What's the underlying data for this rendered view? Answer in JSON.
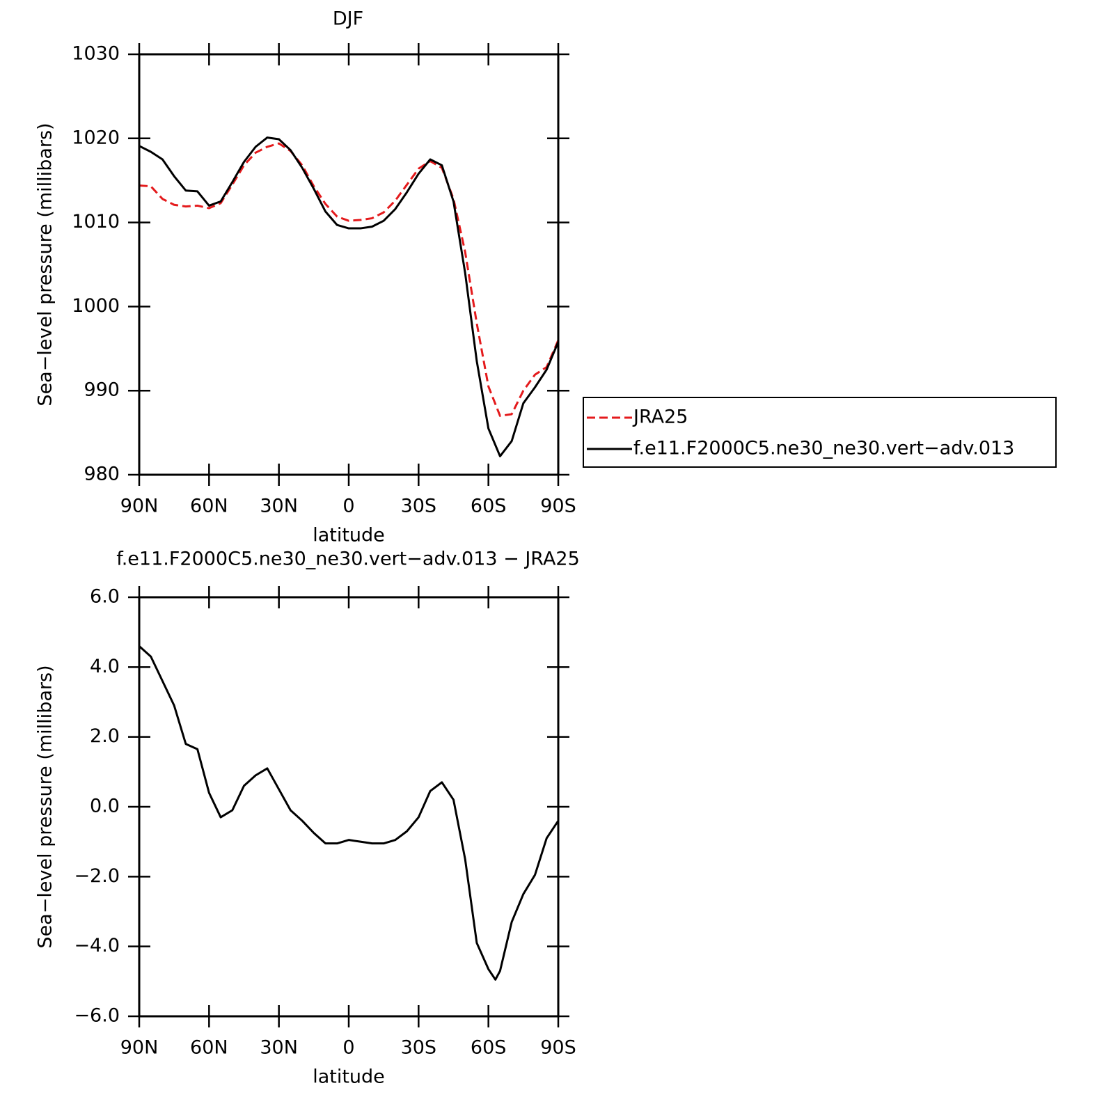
{
  "chart_data": [
    {
      "type": "line",
      "title": "DJF",
      "xlabel": "latitude",
      "ylabel": "Sea−level pressure (millibars)",
      "x": [
        90,
        85,
        80,
        75,
        70,
        65,
        60,
        55,
        50,
        45,
        40,
        35,
        30,
        25,
        20,
        15,
        10,
        5,
        0,
        -5,
        -10,
        -15,
        -20,
        -25,
        -30,
        -35,
        -40,
        -45,
        -50,
        -55,
        -60,
        -65,
        -70,
        -75,
        -80,
        -85,
        -90
      ],
      "series": [
        {
          "name": "JRA25",
          "color": "#e41a1c",
          "dash": true,
          "values": [
            1014.4,
            1014.3,
            1012.8,
            1012.1,
            1011.9,
            1012.0,
            1011.7,
            1012.3,
            1014.5,
            1016.8,
            1018.3,
            1019.0,
            1019.4,
            1018.5,
            1016.8,
            1014.3,
            1012.2,
            1010.7,
            1010.2,
            1010.3,
            1010.5,
            1011.2,
            1012.6,
            1014.5,
            1016.4,
            1017.3,
            1016.5,
            1012.8,
            1006.5,
            998.0,
            990.5,
            987.0,
            987.2,
            990.0,
            991.9,
            992.8,
            996.0
          ]
        },
        {
          "name": "f.e11.F2000C5.ne30_ne30.vert−adv.013",
          "color": "#000000",
          "dash": false,
          "values": [
            1019.1,
            1018.4,
            1017.5,
            1015.5,
            1013.8,
            1013.7,
            1012.0,
            1012.5,
            1014.8,
            1017.2,
            1019.0,
            1020.1,
            1019.9,
            1018.6,
            1016.5,
            1014.0,
            1011.3,
            1009.7,
            1009.3,
            1009.3,
            1009.5,
            1010.2,
            1011.6,
            1013.6,
            1015.8,
            1017.5,
            1016.8,
            1012.5,
            1004.0,
            993.5,
            985.5,
            982.2,
            984.0,
            988.5,
            990.4,
            992.5,
            995.8
          ]
        }
      ],
      "xlim": [
        90,
        -90
      ],
      "xticks": [
        {
          "value": 90,
          "label": "90N"
        },
        {
          "value": 60,
          "label": "60N"
        },
        {
          "value": 30,
          "label": "30N"
        },
        0,
        {
          "value": -30,
          "label": "30S"
        },
        {
          "value": -60,
          "label": "60S"
        },
        {
          "value": -90,
          "label": "90S"
        }
      ],
      "ylim": [
        980,
        1030
      ],
      "yticks": [
        980,
        990,
        1000,
        1010,
        1020,
        1030
      ],
      "legend": "right"
    },
    {
      "type": "line",
      "title": "f.e11.F2000C5.ne30_ne30.vert−adv.013 − JRA25",
      "xlabel": "latitude",
      "ylabel": "Sea−level pressure (millibars)",
      "x": [
        90,
        85,
        80,
        75,
        70,
        65,
        60,
        55,
        50,
        45,
        40,
        35,
        30,
        25,
        20,
        15,
        10,
        5,
        0,
        -5,
        -10,
        -15,
        -20,
        -25,
        -30,
        -35,
        -40,
        -45,
        -50,
        -55,
        -60,
        -63,
        -65,
        -70,
        -75,
        -80,
        -85,
        -90
      ],
      "series": [
        {
          "color": "#000000",
          "dash": false,
          "values": [
            4.6,
            4.3,
            3.6,
            2.9,
            1.8,
            1.65,
            0.4,
            -0.3,
            -0.1,
            0.6,
            0.9,
            1.1,
            0.5,
            -0.1,
            -0.4,
            -0.75,
            -1.05,
            -1.05,
            -0.95,
            -1.0,
            -1.05,
            -1.05,
            -0.95,
            -0.7,
            -0.3,
            0.45,
            0.7,
            0.2,
            -1.5,
            -3.9,
            -4.65,
            -4.95,
            -4.7,
            -3.3,
            -2.5,
            -1.95,
            -0.9,
            -0.4
          ]
        }
      ],
      "xlim": [
        90,
        -90
      ],
      "xticks": [
        {
          "value": 90,
          "label": "90N"
        },
        {
          "value": 60,
          "label": "60N"
        },
        {
          "value": 30,
          "label": "30N"
        },
        0,
        {
          "value": -30,
          "label": "30S"
        },
        {
          "value": -60,
          "label": "60S"
        },
        {
          "value": -90,
          "label": "90S"
        }
      ],
      "ylim": [
        -6,
        6
      ],
      "yticks": [
        {
          "value": -6,
          "label": "−6.0"
        },
        {
          "value": -4,
          "label": "−4.0"
        },
        {
          "value": -2,
          "label": "−2.0"
        },
        {
          "value": 0,
          "label": "0.0"
        },
        {
          "value": 2,
          "label": "2.0"
        },
        {
          "value": 4,
          "label": "4.0"
        },
        {
          "value": 6,
          "label": "6.0"
        }
      ]
    }
  ]
}
